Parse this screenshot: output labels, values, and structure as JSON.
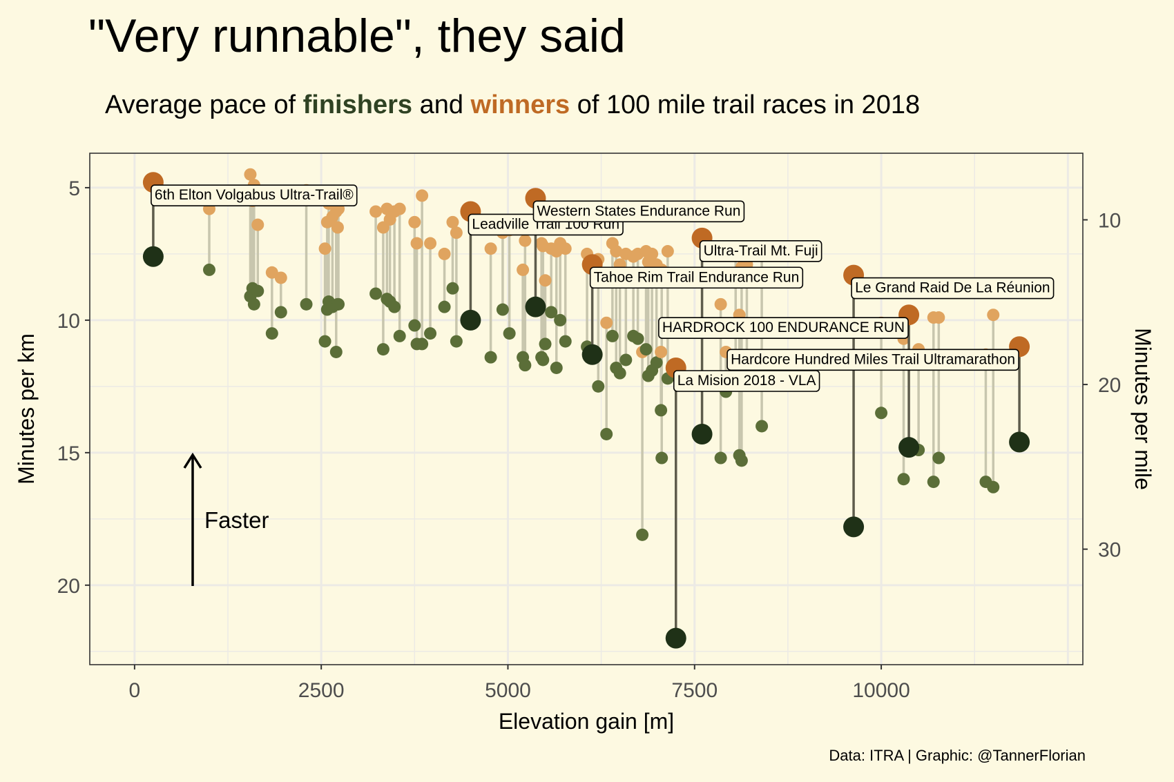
{
  "title": "\"Very runnable\", they said",
  "subtitle": {
    "pre": "Average pace of",
    "finishers": "finishers",
    "mid": "and",
    "winners": "winners",
    "post": "of 100 mile trail races in 2018"
  },
  "caption": "Data: ITRA | Graphic: @TannerFlorian",
  "annotation": "Faster",
  "colors": {
    "background": "#FDF9E1",
    "finisher_small": "#5B6E38",
    "finisher_big": "#1F3117",
    "winner_small": "#E0A45F",
    "winner_big": "#BF6A24",
    "line_small": "#C8C6AE",
    "line_big": "#5E5C4C",
    "grid": "#ECEAE5"
  },
  "chart_data": {
    "type": "scatter",
    "xlabel": "Elevation gain [m]",
    "ylabel": "Minutes per km",
    "y2label": "Minutes per mile",
    "xlim": [
      -600,
      12700
    ],
    "ylim": [
      23,
      3.7
    ],
    "y_reversed": true,
    "xticks": [
      0,
      2500,
      5000,
      7500,
      10000
    ],
    "xtick_labels": [
      "0",
      "2500",
      "5000",
      "7500",
      "10000"
    ],
    "yticks": [
      5,
      10,
      15,
      20
    ],
    "ytick_labels": [
      "5",
      "10",
      "15",
      "20"
    ],
    "y2ticks": [
      10,
      20,
      30
    ],
    "y2tick_labels": [
      "10",
      "20",
      "30"
    ],
    "legend": "none",
    "series": [
      {
        "name": "finishers",
        "role": "average pace of all finishers"
      },
      {
        "name": "winners",
        "role": "pace of race winner"
      }
    ],
    "highlighted": [
      {
        "name": "6th Elton Volgabus Ultra-Trail®",
        "x": 250,
        "winner": 4.8,
        "finisher": 7.6
      },
      {
        "name": "Leadville Trail 100 Run",
        "x": 4500,
        "winner": 5.9,
        "finisher": 10.0
      },
      {
        "name": "Western States Endurance Run",
        "x": 5370,
        "winner": 5.4,
        "finisher": 9.5
      },
      {
        "name": "Tahoe Rim Trail Endurance Run",
        "x": 6130,
        "winner": 7.9,
        "finisher": 11.3
      },
      {
        "name": "Ultra-Trail Mt. Fuji",
        "x": 7600,
        "winner": 6.9,
        "finisher": 14.3
      },
      {
        "name": "La Mision 2018 - VLA",
        "x": 7250,
        "winner": 11.8,
        "finisher": 22.0
      },
      {
        "name": "Le Grand Raid De La Réunion",
        "x": 9630,
        "winner": 8.3,
        "finisher": 17.8
      },
      {
        "name": "HARDROCK 100 ENDURANCE RUN",
        "x": 10370,
        "winner": 9.8,
        "finisher": 14.8
      },
      {
        "name": "Hardcore Hundred Miles Trail Ultramarathon",
        "x": 11850,
        "winner": 11.0,
        "finisher": 14.6
      }
    ],
    "races": [
      {
        "x": 1000,
        "winner": 5.8,
        "finisher": 8.1
      },
      {
        "x": 1550,
        "winner": 4.5,
        "finisher": 9.1
      },
      {
        "x": 1580,
        "winner": 5.5,
        "finisher": 8.8
      },
      {
        "x": 1600,
        "winner": 4.9,
        "finisher": 9.4
      },
      {
        "x": 1650,
        "winner": 6.4,
        "finisher": 8.9
      },
      {
        "x": 1840,
        "winner": 8.2,
        "finisher": 10.5
      },
      {
        "x": 1960,
        "winner": 8.4,
        "finisher": 9.7
      },
      {
        "x": 2300,
        "winner": 5.1,
        "finisher": 9.4
      },
      {
        "x": 2550,
        "winner": 7.3,
        "finisher": 10.8
      },
      {
        "x": 2580,
        "winner": 6.3,
        "finisher": 9.6
      },
      {
        "x": 2600,
        "winner": 5.6,
        "finisher": 9.3
      },
      {
        "x": 2650,
        "winner": 6.1,
        "finisher": 9.5
      },
      {
        "x": 2700,
        "winner": 5.9,
        "finisher": 11.2
      },
      {
        "x": 2720,
        "winner": 6.5,
        "finisher": 9.4
      },
      {
        "x": 2730,
        "winner": 5.8,
        "finisher": 9.4
      },
      {
        "x": 3230,
        "winner": 5.9,
        "finisher": 9.0
      },
      {
        "x": 3330,
        "winner": 6.5,
        "finisher": 11.1
      },
      {
        "x": 3380,
        "winner": 5.8,
        "finisher": 9.2
      },
      {
        "x": 3420,
        "winner": 6.2,
        "finisher": 9.3
      },
      {
        "x": 3480,
        "winner": 5.9,
        "finisher": 9.5
      },
      {
        "x": 3550,
        "winner": 5.8,
        "finisher": 10.6
      },
      {
        "x": 3750,
        "winner": 6.3,
        "finisher": 10.2
      },
      {
        "x": 3780,
        "winner": 7.1,
        "finisher": 10.9
      },
      {
        "x": 3850,
        "winner": 5.3,
        "finisher": 10.9
      },
      {
        "x": 3960,
        "winner": 7.1,
        "finisher": 10.5
      },
      {
        "x": 4150,
        "winner": 7.5,
        "finisher": 9.5
      },
      {
        "x": 4260,
        "winner": 6.3,
        "finisher": 8.8
      },
      {
        "x": 4310,
        "winner": 6.7,
        "finisher": 10.8
      },
      {
        "x": 4770,
        "winner": 7.3,
        "finisher": 11.4
      },
      {
        "x": 4930,
        "winner": 6.7,
        "finisher": 9.6
      },
      {
        "x": 5020,
        "winner": 6.6,
        "finisher": 10.5
      },
      {
        "x": 5200,
        "winner": 8.1,
        "finisher": 11.4
      },
      {
        "x": 5230,
        "winner": 7.0,
        "finisher": 11.7
      },
      {
        "x": 5450,
        "winner": 7.1,
        "finisher": 11.4
      },
      {
        "x": 5470,
        "winner": 7.2,
        "finisher": 11.5
      },
      {
        "x": 5500,
        "winner": 8.5,
        "finisher": 10.9
      },
      {
        "x": 5580,
        "winner": 7.3,
        "finisher": 9.7
      },
      {
        "x": 5650,
        "winner": 7.4,
        "finisher": 11.8
      },
      {
        "x": 5700,
        "winner": 7.1,
        "finisher": 10.0
      },
      {
        "x": 5770,
        "winner": 7.3,
        "finisher": 10.8
      },
      {
        "x": 6060,
        "winner": 7.5,
        "finisher": 11.0
      },
      {
        "x": 6210,
        "winner": 7.7,
        "finisher": 12.5
      },
      {
        "x": 6320,
        "winner": 10.1,
        "finisher": 14.3
      },
      {
        "x": 6400,
        "winner": 7.1,
        "finisher": 10.6
      },
      {
        "x": 6450,
        "winner": 7.4,
        "finisher": 11.8
      },
      {
        "x": 6500,
        "winner": 7.9,
        "finisher": 12.0
      },
      {
        "x": 6580,
        "winner": 7.5,
        "finisher": 11.5
      },
      {
        "x": 6680,
        "winner": 7.6,
        "finisher": 10.6
      },
      {
        "x": 6740,
        "winner": 7.5,
        "finisher": 10.7
      },
      {
        "x": 6800,
        "winner": 11.2,
        "finisher": 18.1
      },
      {
        "x": 6850,
        "winner": 7.4,
        "finisher": 11.1
      },
      {
        "x": 6880,
        "winner": 7.8,
        "finisher": 12.1
      },
      {
        "x": 6930,
        "winner": 7.5,
        "finisher": 11.9
      },
      {
        "x": 6990,
        "winner": 7.9,
        "finisher": 11.6
      },
      {
        "x": 7050,
        "winner": 11.2,
        "finisher": 13.4
      },
      {
        "x": 7060,
        "winner": 8.1,
        "finisher": 15.2
      },
      {
        "x": 7140,
        "winner": 7.4,
        "finisher": 12.2
      },
      {
        "x": 7850,
        "winner": 9.4,
        "finisher": 15.2
      },
      {
        "x": 7920,
        "winner": 11.2,
        "finisher": 12.7
      },
      {
        "x": 8050,
        "winner": 7.5,
        "finisher": 12.0
      },
      {
        "x": 8100,
        "winner": 9.8,
        "finisher": 15.1
      },
      {
        "x": 8130,
        "winner": 8.0,
        "finisher": 15.3
      },
      {
        "x": 8200,
        "winner": 7.9,
        "finisher": 11.8
      },
      {
        "x": 8400,
        "winner": 7.5,
        "finisher": 14.0
      },
      {
        "x": 10000,
        "winner": 10.1,
        "finisher": 13.5
      },
      {
        "x": 10300,
        "winner": 10.7,
        "finisher": 16.0
      },
      {
        "x": 10500,
        "winner": 11.1,
        "finisher": 14.9
      },
      {
        "x": 10700,
        "winner": 9.9,
        "finisher": 16.1
      },
      {
        "x": 10770,
        "winner": 9.9,
        "finisher": 15.2
      },
      {
        "x": 11400,
        "winner": 11.3,
        "finisher": 16.1
      },
      {
        "x": 11500,
        "winner": 9.8,
        "finisher": 16.3
      }
    ]
  }
}
